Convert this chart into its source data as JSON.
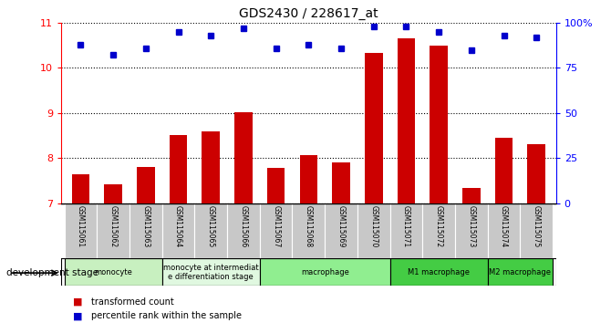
{
  "title": "GDS2430 / 228617_at",
  "samples": [
    "GSM115061",
    "GSM115062",
    "GSM115063",
    "GSM115064",
    "GSM115065",
    "GSM115066",
    "GSM115067",
    "GSM115068",
    "GSM115069",
    "GSM115070",
    "GSM115071",
    "GSM115072",
    "GSM115073",
    "GSM115074",
    "GSM115075"
  ],
  "transformed_count": [
    7.65,
    7.42,
    7.8,
    8.52,
    8.6,
    9.02,
    7.78,
    8.07,
    7.9,
    10.32,
    10.65,
    10.5,
    7.35,
    8.45,
    8.32
  ],
  "percentile_rank": [
    88,
    82,
    86,
    95,
    93,
    97,
    86,
    88,
    86,
    98,
    98,
    95,
    85,
    93,
    92
  ],
  "bar_color": "#cc0000",
  "dot_color": "#0000cc",
  "ylim_left": [
    7,
    11
  ],
  "ylim_right": [
    0,
    100
  ],
  "yticks_left": [
    7,
    8,
    9,
    10,
    11
  ],
  "yticks_right": [
    0,
    25,
    50,
    75,
    100
  ],
  "ytick_labels_right": [
    "0",
    "25",
    "50",
    "75",
    "100%"
  ],
  "groups": [
    {
      "label": "monocyte",
      "start": 0,
      "end": 3,
      "color": "#c8f0c0"
    },
    {
      "label": "monocyte at intermediat\ne differentiation stage",
      "start": 3,
      "end": 6,
      "color": "#e0f8e0"
    },
    {
      "label": "macrophage",
      "start": 6,
      "end": 10,
      "color": "#90ee90"
    },
    {
      "label": "M1 macrophage",
      "start": 10,
      "end": 13,
      "color": "#44cc44"
    },
    {
      "label": "M2 macrophage",
      "start": 13,
      "end": 15,
      "color": "#44cc44"
    }
  ],
  "sample_area_color": "#c8c8c8",
  "legend_red_label": "transformed count",
  "legend_blue_label": "percentile rank within the sample",
  "dev_stage_label": "development stage"
}
